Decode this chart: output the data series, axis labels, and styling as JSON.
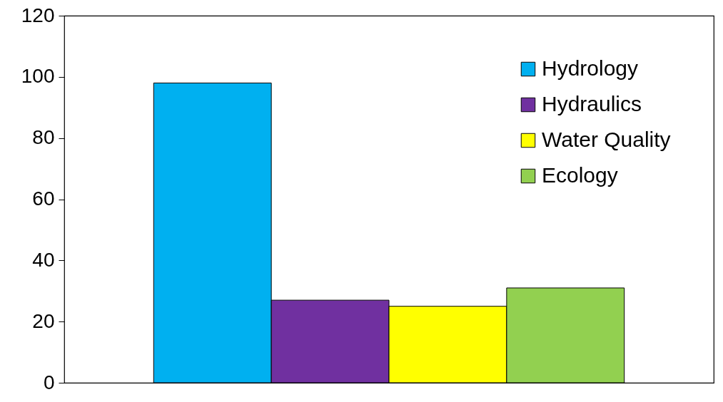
{
  "chart_data": {
    "type": "bar",
    "categories": [
      null
    ],
    "series": [
      {
        "name": "Hydrology",
        "color": "#00b0f0",
        "values": [
          98
        ]
      },
      {
        "name": "Hydraulics",
        "color": "#7030a0",
        "values": [
          27
        ]
      },
      {
        "name": "Water Quality",
        "color": "#ffff00",
        "values": [
          25
        ]
      },
      {
        "name": "Ecology",
        "color": "#92d050",
        "values": [
          31
        ]
      }
    ],
    "ylim": [
      0,
      120
    ],
    "yticks": [
      0,
      20,
      40,
      60,
      80,
      100,
      120
    ],
    "grid": false,
    "legend": "top right"
  }
}
